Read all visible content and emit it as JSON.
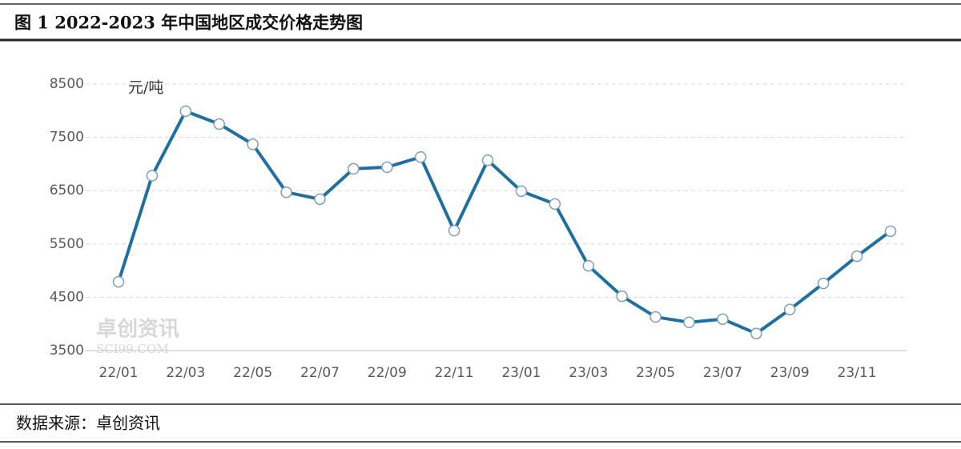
{
  "chart_data": {
    "type": "line",
    "title": "图 1 2022-2023 年中国地区成交价格走势图",
    "y_unit": "元/吨",
    "source": "数据来源：卓创资讯",
    "watermark": [
      "卓创资讯",
      "SCI99.COM"
    ],
    "categories": [
      "22/01",
      null,
      "22/03",
      null,
      "22/05",
      null,
      "22/07",
      null,
      "22/09",
      null,
      "22/11",
      null,
      "23/01",
      null,
      "23/03",
      null,
      "23/05",
      null,
      "23/07",
      null,
      "23/09",
      null,
      "23/11",
      null
    ],
    "series": [
      {
        "color": "#1f6fa0",
        "values": [
          4790,
          6780,
          7990,
          7750,
          7370,
          6470,
          6340,
          6910,
          6940,
          7130,
          5750,
          7070,
          6490,
          6250,
          5090,
          4520,
          4130,
          4030,
          4090,
          3820,
          4270,
          4760,
          5270,
          5740
        ]
      }
    ],
    "ylim": [
      3500,
      8500
    ],
    "yticks": [
      3500,
      4500,
      5500,
      6500,
      7500,
      8500
    ],
    "grid": true
  }
}
